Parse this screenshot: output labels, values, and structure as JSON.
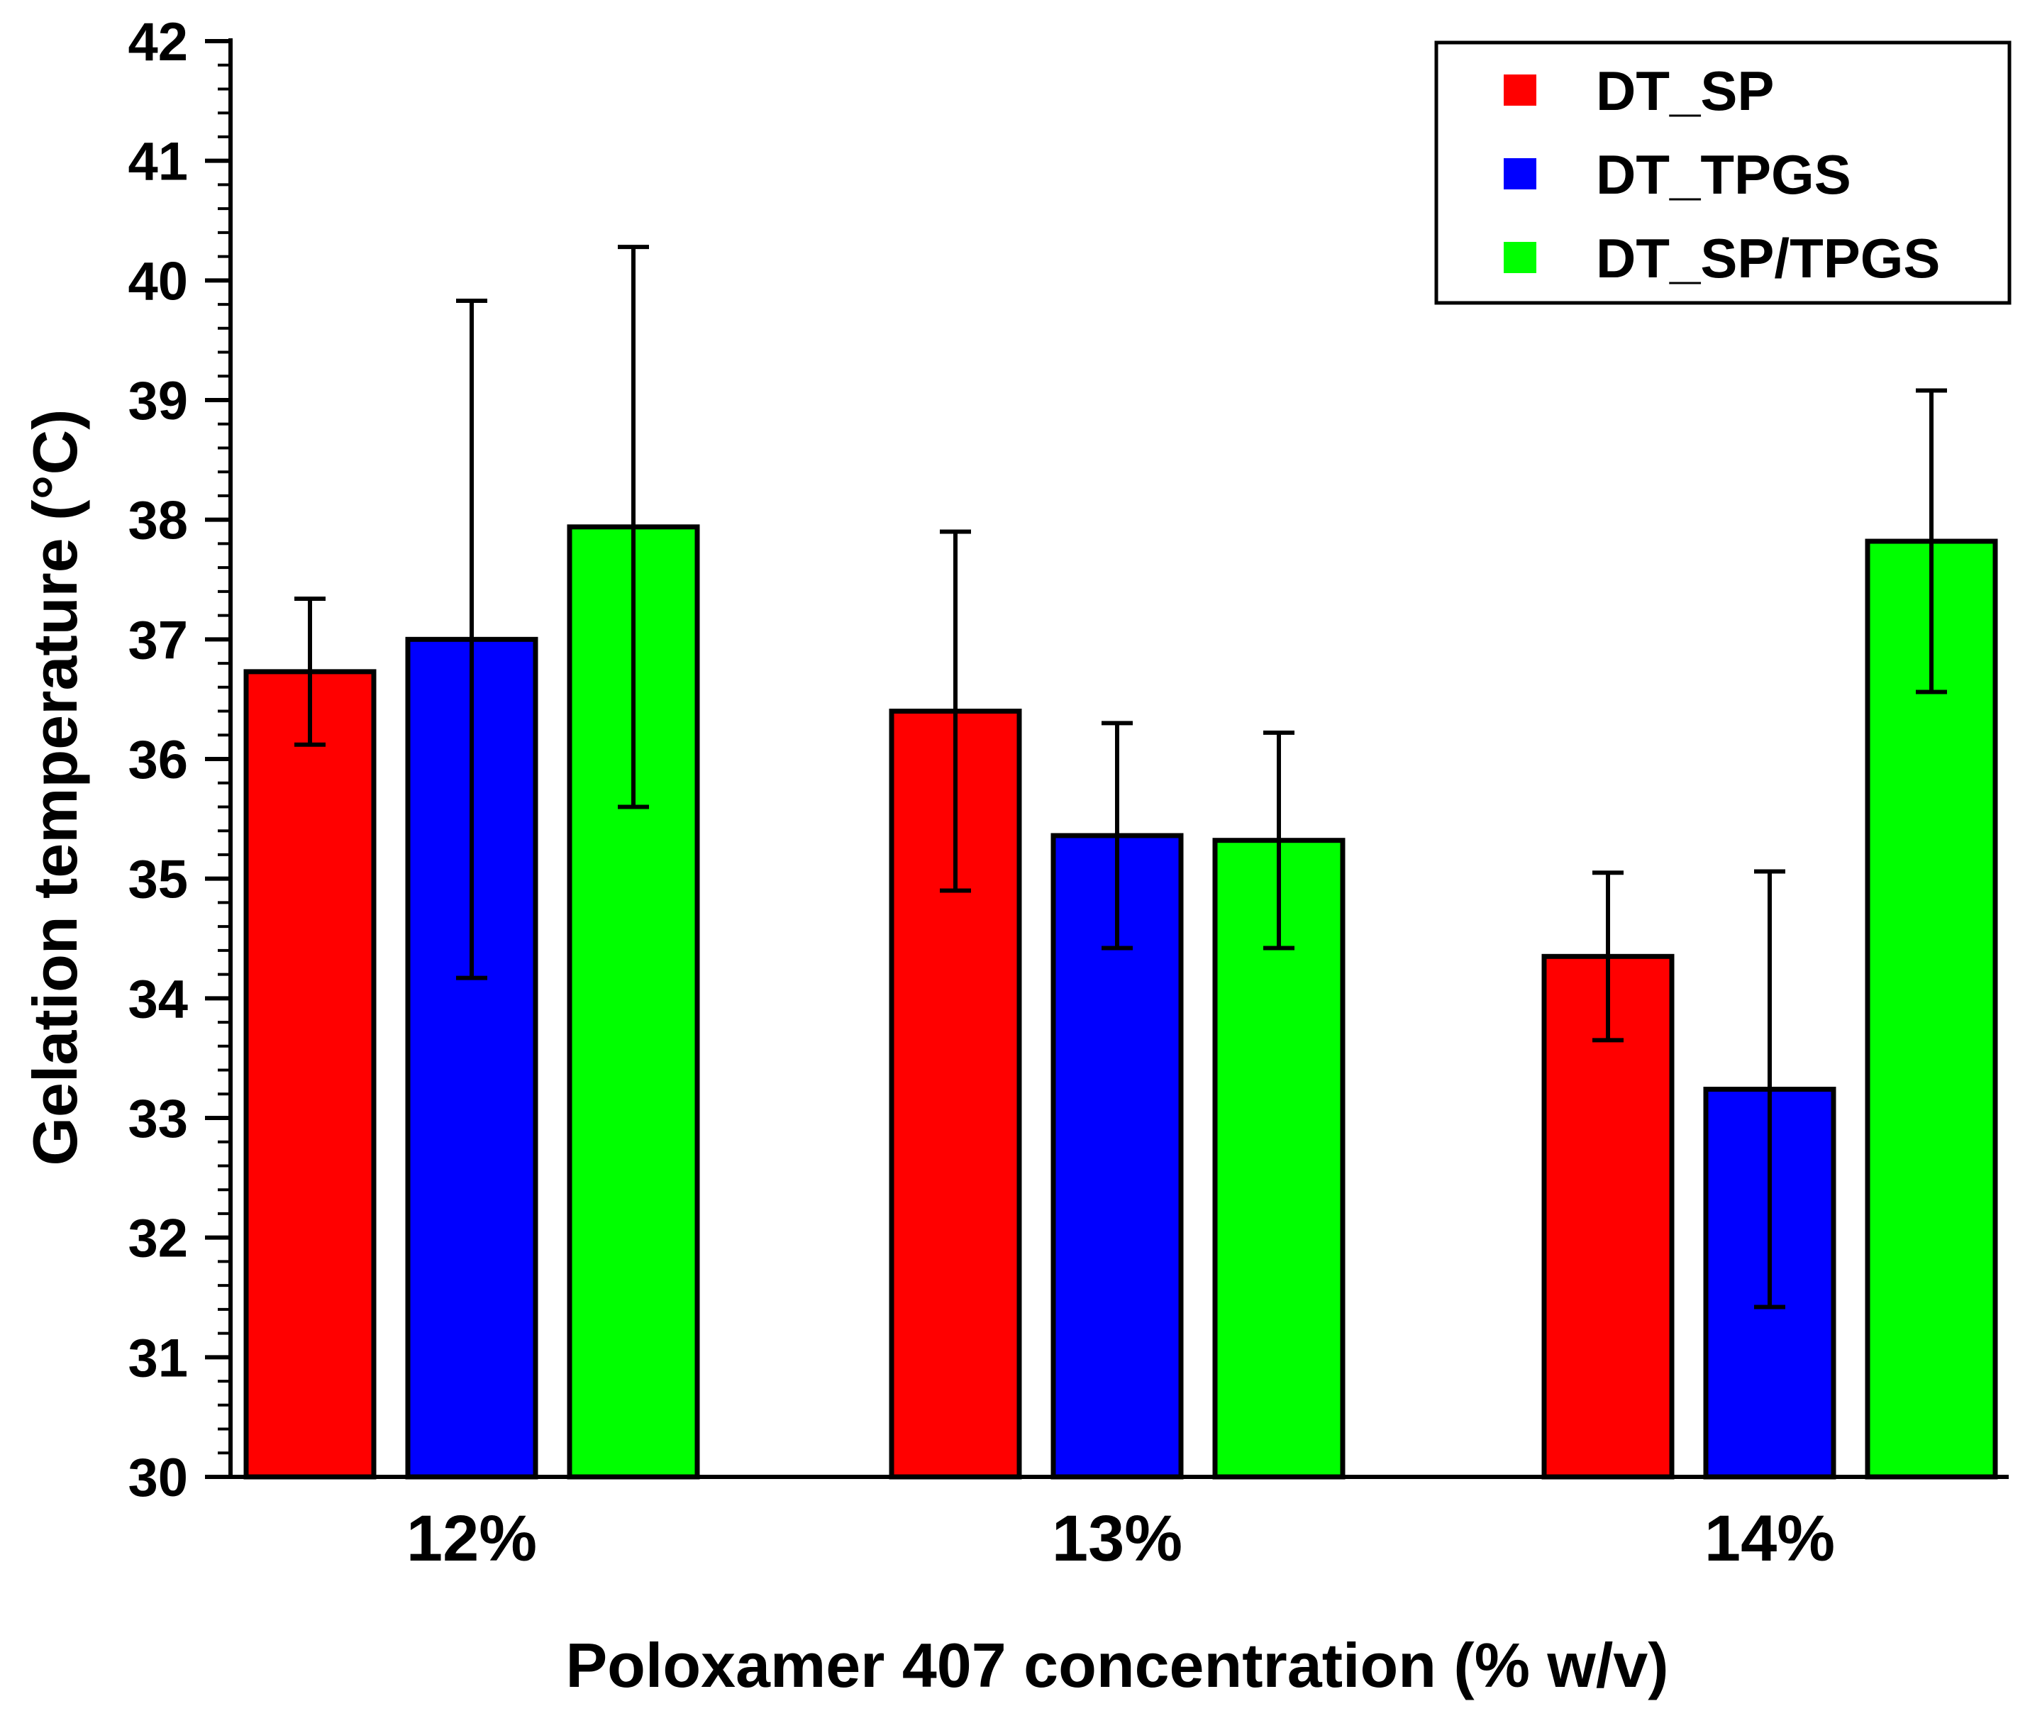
{
  "chart_data": {
    "type": "bar",
    "title": "",
    "xlabel": "Poloxamer 407 concentration (% w/v)",
    "ylabel": "Gelation temperature  (°C)",
    "ylim": [
      30,
      42
    ],
    "yticks": [
      "30",
      "31",
      "32",
      "33",
      "34",
      "35",
      "36",
      "37",
      "38",
      "39",
      "40",
      "41",
      "42"
    ],
    "categories": [
      "12%",
      "13%",
      "14%"
    ],
    "series": [
      {
        "name": "DT_SP",
        "color": "#ff0000",
        "values": [
          36.73,
          36.4,
          34.35
        ],
        "errors": [
          0.61,
          1.5,
          0.7
        ]
      },
      {
        "name": "DT_TPGS",
        "color": "#0000ff",
        "values": [
          37.0,
          35.36,
          33.24
        ],
        "errors": [
          2.83,
          0.94,
          1.82
        ]
      },
      {
        "name": "DT_SP/TPGS",
        "color": "#00ff00",
        "values": [
          37.94,
          35.32,
          37.82
        ],
        "errors": [
          2.34,
          0.9,
          1.26
        ]
      }
    ],
    "legend_position": "top-right",
    "grid": false
  }
}
